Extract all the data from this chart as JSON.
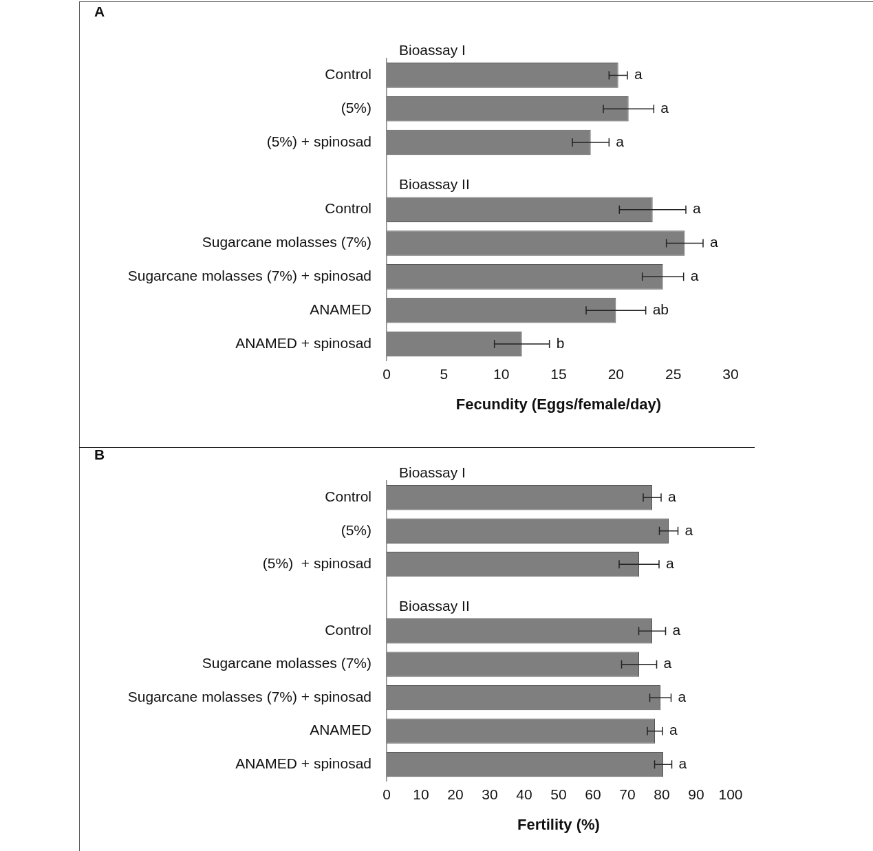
{
  "chart_data": [
    {
      "type": "bar",
      "orientation": "horizontal",
      "title": "A",
      "xlabel": "Fecundity (Eggs/female/day)",
      "categories": [
        "Control",
        "(5%)",
        "(5%) + spinosad",
        null,
        "Control",
        "Sugarcane molasses (7%)",
        "Sugarcane molasses (7%) + spinosad",
        "ANAMED",
        "ANAMED + spinosad"
      ],
      "values": [
        20.2,
        21.1,
        17.8,
        null,
        23.2,
        26.0,
        24.1,
        20.0,
        11.8
      ],
      "errors": [
        0.8,
        2.2,
        1.6,
        null,
        2.9,
        1.6,
        1.8,
        2.6,
        2.4
      ],
      "value_labels": [
        "a",
        "a",
        "a",
        null,
        "a",
        "a",
        "a",
        "ab",
        "b"
      ],
      "color": "#7f7f7f",
      "xlim": [
        0,
        30
      ],
      "xticks": [
        0,
        5,
        10,
        15,
        20,
        25,
        30
      ],
      "annotations": [
        "Bioassay I",
        "Bioassay II"
      ],
      "grid": false,
      "legend": false
    },
    {
      "type": "bar",
      "orientation": "horizontal",
      "title": "B",
      "xlabel": "Fertility (%)",
      "categories": [
        "Control",
        "(5%)",
        "(5%)  + spinosad",
        null,
        "Control",
        "Sugarcane molasses (7%)",
        "Sugarcane molasses (7%) + spinosad",
        "ANAMED",
        "ANAMED + spinosad"
      ],
      "values": [
        77.2,
        82,
        73.4,
        null,
        77.2,
        73.4,
        79.6,
        78,
        80.4
      ],
      "errors": [
        2.6,
        2.7,
        5.8,
        null,
        3.9,
        5.1,
        3.1,
        2.2,
        2.5
      ],
      "value_labels": [
        "a",
        "a",
        "a",
        null,
        "a",
        "a",
        "a",
        "a",
        "a"
      ],
      "color": "#7f7f7f",
      "xlim": [
        0,
        100
      ],
      "xticks": [
        0,
        10,
        20,
        30,
        40,
        50,
        60,
        70,
        80,
        90,
        100
      ],
      "annotations": [
        "Bioassay I",
        "Bioassay II"
      ],
      "grid": false,
      "legend": false
    }
  ]
}
